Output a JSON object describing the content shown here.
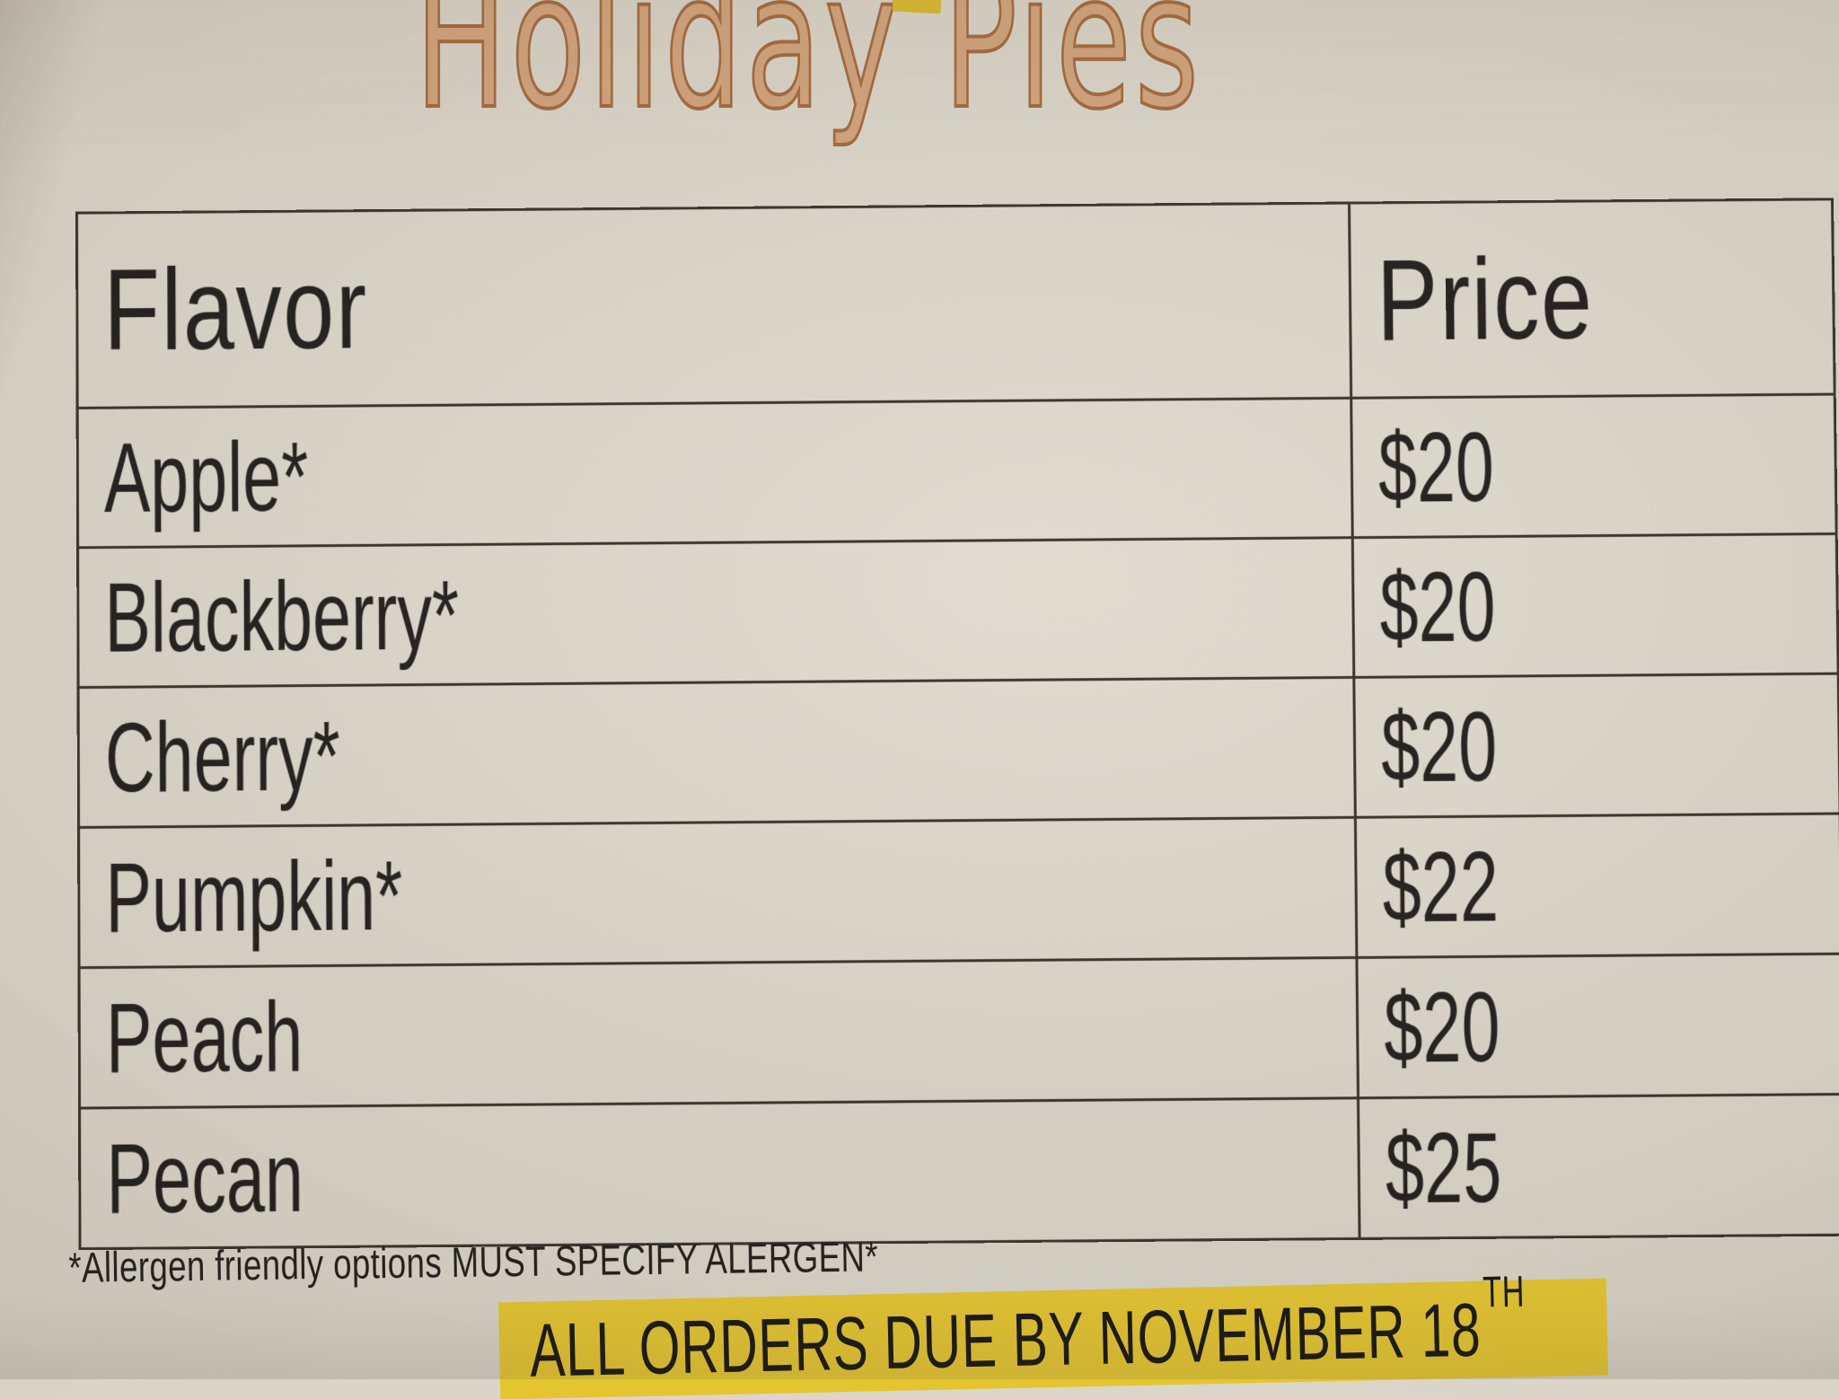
{
  "title": "Holiday Pies",
  "table": {
    "headers": [
      "Flavor",
      "Price"
    ],
    "rows": [
      {
        "flavor": "Apple*",
        "price": "$20"
      },
      {
        "flavor": "Blackberry*",
        "price": "$20"
      },
      {
        "flavor": "Cherry*",
        "price": "$20"
      },
      {
        "flavor": "Pumpkin*",
        "price": "$22"
      },
      {
        "flavor": "Peach",
        "price": "$20"
      },
      {
        "flavor": "Pecan",
        "price": "$25"
      }
    ]
  },
  "footnote": "*Allergen friendly options MUST SPECIFY ALERGEN*",
  "deadline": {
    "text": "ALL ORDERS DUE BY NOVEMBER 18",
    "superscript": "TH",
    "highlight_color": "#e4c52f"
  },
  "colors": {
    "paper": "#d9d4c7",
    "title_fill": "#d2a47c",
    "title_outline": "#a4693c",
    "table_line": "#35322b",
    "text": "#201e1b",
    "highlight": "#e4c52f"
  }
}
